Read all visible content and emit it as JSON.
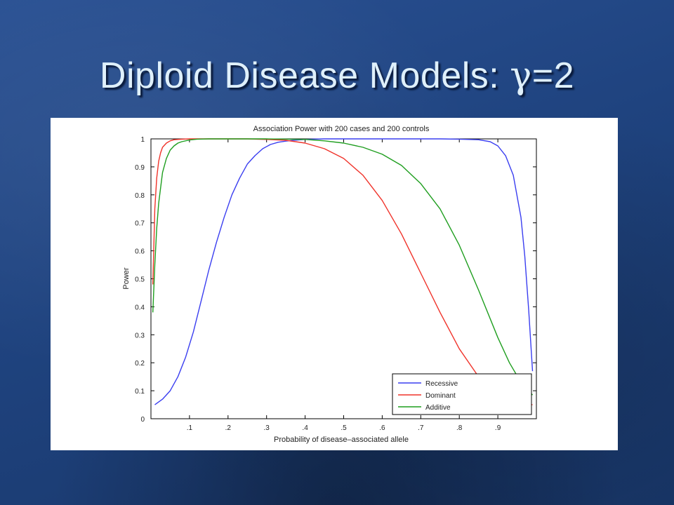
{
  "slide": {
    "title_prefix": "Diploid Disease Models: ",
    "title_symbol": "γ",
    "title_suffix": "=2"
  },
  "chart_data": {
    "type": "line",
    "title": "Association Power with 200 cases and 200 controls",
    "xlabel": "Probability of disease–associated allele",
    "ylabel": "Power",
    "xlim": [
      0,
      1
    ],
    "ylim": [
      0,
      1
    ],
    "xticks": [
      0.1,
      0.2,
      0.3,
      0.4,
      0.5,
      0.6,
      0.7,
      0.8,
      0.9
    ],
    "xtick_labels": [
      ".1",
      ".2",
      ".3",
      ".4",
      ".5",
      ".6",
      ".7",
      ".8",
      ".9"
    ],
    "yticks": [
      0,
      0.1,
      0.2,
      0.3,
      0.4,
      0.5,
      0.6,
      0.7,
      0.8,
      0.9,
      1
    ],
    "ytick_labels": [
      "0",
      "0.1",
      "0.2",
      "0.3",
      "0.4",
      "0.5",
      "0.6",
      "0.7",
      "0.8",
      "0.9",
      "1"
    ],
    "grid": false,
    "legend_position": "bottom-right",
    "series": [
      {
        "name": "Recessive",
        "color": "#3a3ef0",
        "x": [
          0.01,
          0.03,
          0.05,
          0.07,
          0.09,
          0.11,
          0.13,
          0.15,
          0.17,
          0.19,
          0.21,
          0.23,
          0.25,
          0.27,
          0.29,
          0.31,
          0.33,
          0.35,
          0.37,
          0.4,
          0.45,
          0.5,
          0.55,
          0.6,
          0.65,
          0.7,
          0.75,
          0.8,
          0.85,
          0.88,
          0.9,
          0.92,
          0.94,
          0.96,
          0.97,
          0.98,
          0.99
        ],
        "y": [
          0.05,
          0.07,
          0.1,
          0.15,
          0.22,
          0.31,
          0.42,
          0.53,
          0.63,
          0.72,
          0.8,
          0.86,
          0.91,
          0.94,
          0.965,
          0.98,
          0.988,
          0.992,
          0.995,
          0.998,
          1.0,
          1.0,
          1.0,
          1.0,
          1.0,
          1.0,
          1.0,
          0.999,
          0.997,
          0.99,
          0.975,
          0.94,
          0.87,
          0.72,
          0.58,
          0.39,
          0.17
        ]
      },
      {
        "name": "Dominant",
        "color": "#f0332a",
        "x": [
          0.005,
          0.01,
          0.015,
          0.02,
          0.025,
          0.03,
          0.04,
          0.05,
          0.06,
          0.08,
          0.1,
          0.15,
          0.2,
          0.25,
          0.3,
          0.35,
          0.4,
          0.45,
          0.5,
          0.55,
          0.6,
          0.65,
          0.7,
          0.75,
          0.8,
          0.85,
          0.9,
          0.93,
          0.96,
          0.99
        ],
        "y": [
          0.48,
          0.75,
          0.86,
          0.92,
          0.95,
          0.97,
          0.985,
          0.993,
          0.997,
          0.999,
          1.0,
          1.0,
          1.0,
          1.0,
          0.998,
          0.995,
          0.985,
          0.965,
          0.93,
          0.87,
          0.78,
          0.66,
          0.52,
          0.38,
          0.25,
          0.15,
          0.09,
          0.07,
          0.055,
          0.05
        ]
      },
      {
        "name": "Additive",
        "color": "#1f9e1f",
        "x": [
          0.005,
          0.01,
          0.015,
          0.02,
          0.03,
          0.04,
          0.05,
          0.06,
          0.07,
          0.08,
          0.1,
          0.12,
          0.15,
          0.2,
          0.3,
          0.4,
          0.45,
          0.5,
          0.55,
          0.6,
          0.65,
          0.7,
          0.75,
          0.8,
          0.85,
          0.9,
          0.93,
          0.96,
          0.99
        ],
        "y": [
          0.38,
          0.55,
          0.68,
          0.77,
          0.88,
          0.93,
          0.96,
          0.975,
          0.985,
          0.99,
          0.996,
          0.999,
          1.0,
          1.0,
          1.0,
          0.998,
          0.993,
          0.985,
          0.97,
          0.945,
          0.905,
          0.84,
          0.75,
          0.62,
          0.46,
          0.29,
          0.2,
          0.13,
          0.085
        ]
      }
    ]
  }
}
